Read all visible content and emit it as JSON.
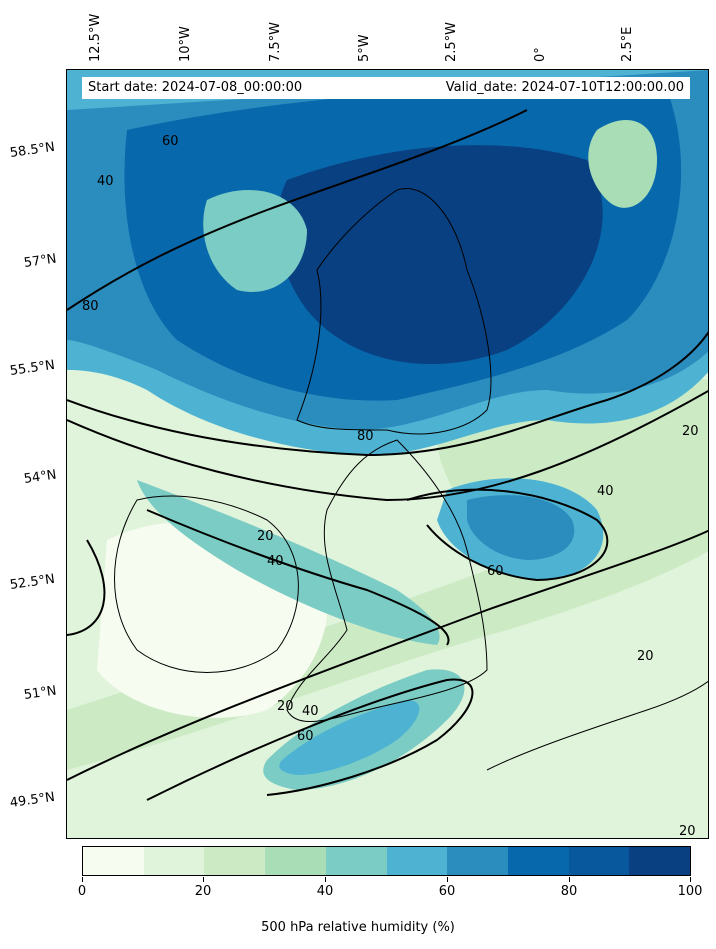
{
  "header": {
    "start_date": "Start date: 2024-07-08_00:00:00",
    "valid_date": "Valid_date: 2024-07-10T12:00:00.00"
  },
  "longitude_labels": [
    "12.5°W",
    "10°W",
    "7.5°W",
    "5°W",
    "2.5°W",
    "0°",
    "2.5°E"
  ],
  "latitude_labels": [
    "58.5°N",
    "57°N",
    "55.5°N",
    "54°N",
    "52.5°N",
    "51°N",
    "49.5°N"
  ],
  "contour_labels": [
    "20",
    "40",
    "60",
    "80"
  ],
  "colorbar": {
    "label": "500 hPa relative humidity (%)",
    "tick_labels": [
      "0",
      "20",
      "40",
      "60",
      "80",
      "100"
    ],
    "colors": [
      "#f7fcf0",
      "#e0f3db",
      "#ccebc5",
      "#a8ddb5",
      "#7bccc4",
      "#4eb3d3",
      "#2b8cbe",
      "#0868ac",
      "#08589e",
      "#084081"
    ]
  },
  "chart_data": {
    "type": "filled-contour map",
    "variable": "500 hPa relative humidity (%)",
    "levels": [
      0,
      10,
      20,
      30,
      40,
      50,
      60,
      70,
      80,
      90,
      100
    ],
    "contour_lines": [
      20,
      40,
      60,
      80
    ],
    "colormap": "GnBu"
  }
}
